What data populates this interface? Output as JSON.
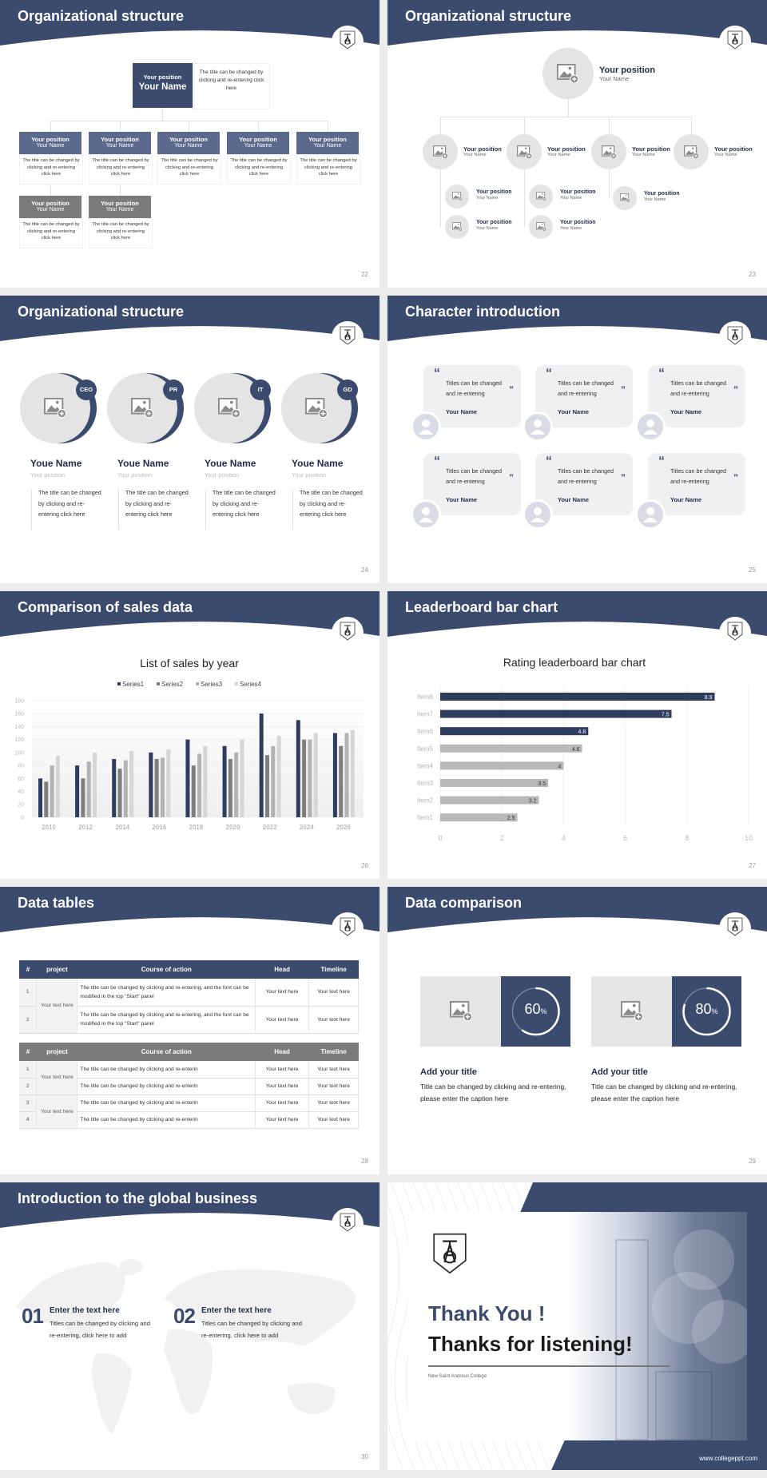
{
  "theme": {
    "navy": "#3b4b6e",
    "navy_light": "#5b6a8c",
    "gray_header": "#7b7b7b",
    "placeholder_gray": "#e4e4e4"
  },
  "s22": {
    "title": "Organizational structure",
    "page": "22",
    "top": {
      "position": "Your position",
      "name": "Your Name",
      "desc": "The title can be changed by clicking and re-entering click here"
    },
    "members": [
      {
        "position": "Your position",
        "name": "Your Name",
        "desc": "The title can be changed by clicking and re-entering click here"
      },
      {
        "position": "Your position",
        "name": "Your Name",
        "desc": "The title can be changed by clicking and re-entering click here"
      },
      {
        "position": "Your position",
        "name": "Your Name",
        "desc": "The title can be changed by clicking and re-entering click here"
      },
      {
        "position": "Your position",
        "name": "Your Name",
        "desc": "The title can be changed by clicking and re-entering click here"
      },
      {
        "position": "Your position",
        "name": "Your Name",
        "desc": "The title can be changed by clicking and re-entering click here"
      },
      {
        "position": "Your position",
        "name": "Your Name",
        "desc": "The title can be changed by clicking and re-entering click here"
      },
      {
        "position": "Your position",
        "name": "Your Name",
        "desc": "The title can be changed by clicking and re-entering click here"
      }
    ]
  },
  "s23": {
    "title": "Organizational structure",
    "page": "23",
    "top": {
      "position": "Your position",
      "name": "Your Name"
    },
    "mid": [
      {
        "position": "Your position",
        "name": "Your Name"
      },
      {
        "position": "Your position",
        "name": "Your Name"
      },
      {
        "position": "Your position",
        "name": "Your Name"
      },
      {
        "position": "Your position",
        "name": "Your Name"
      }
    ],
    "small": [
      {
        "position": "Your position",
        "name": "Your Name"
      },
      {
        "position": "Your position",
        "name": "Your Name"
      },
      {
        "position": "Your position",
        "name": "Your Name"
      },
      {
        "position": "Your position",
        "name": "Your Name"
      },
      {
        "position": "Your position",
        "name": "Your Name"
      }
    ]
  },
  "s24": {
    "title": "Organizational structure",
    "page": "24",
    "people": [
      {
        "badge": "CEO",
        "name": "Youe Name",
        "position": "Your position",
        "desc": "The title can be changed by clicking and re-entering click here"
      },
      {
        "badge": "PR",
        "name": "Youe Name",
        "position": "Your position",
        "desc": "The title can be changed by clicking and re-entering click here"
      },
      {
        "badge": "IT",
        "name": "Youe Name",
        "position": "Your position",
        "desc": "The title can be changed by clicking and re-entering click here"
      },
      {
        "badge": "GD",
        "name": "Youe Name",
        "position": "Your position",
        "desc": "The title can be changed by clicking and re-entering click here"
      }
    ]
  },
  "s25": {
    "title": "Character introduction",
    "page": "25",
    "open_quote": "“",
    "close_quote": "”",
    "cards": [
      {
        "text": "Titles can be changed and re-entering",
        "name": "Your Name"
      },
      {
        "text": "Titles can be changed and re-entering",
        "name": "Your Name"
      },
      {
        "text": "Titles can be changed and re-entering",
        "name": "Your Name"
      },
      {
        "text": "Titles can be changed and re-entering",
        "name": "Your Name"
      },
      {
        "text": "Titles can be changed and re-entering",
        "name": "Your Name"
      },
      {
        "text": "Titles can be changed and re-entering",
        "name": "Your Name"
      }
    ]
  },
  "s26": {
    "title": "Comparison of sales data",
    "page": "26"
  },
  "s27": {
    "title": "Leaderboard bar chart",
    "page": "27"
  },
  "s28": {
    "title": "Data tables",
    "page": "28",
    "headers": [
      "#",
      "project",
      "Course of action",
      "Head",
      "Timeline"
    ],
    "table1": {
      "project": "Your text here",
      "rows": [
        {
          "num": "1",
          "action": "The title can be changed by clicking and re-entering, and the font can be modified in the top \"Start\" panel",
          "head": "Your text here",
          "timeline": "Your text here"
        },
        {
          "num": "2",
          "action": "The title can be changed by clicking and re-entering, and the font can be modified in the top \"Start\" panel",
          "head": "Your text here",
          "timeline": "Your text here"
        }
      ]
    },
    "table2": {
      "projects": [
        "Your text here",
        "Your text here"
      ],
      "rows": [
        {
          "num": "1",
          "action": "The title can be changed by clicking and re-enterin",
          "head": "Your text here",
          "timeline": "Your text here"
        },
        {
          "num": "2",
          "action": "The title can be changed by clicking and re-enterin",
          "head": "Your text here",
          "timeline": "Your text here"
        },
        {
          "num": "3",
          "action": "The title can be changed by clicking and re-enterin",
          "head": "Your text here",
          "timeline": "Your text here"
        },
        {
          "num": "4",
          "action": "The title can be changed by clicking and re-enterin",
          "head": "Your text here",
          "timeline": "Your text here"
        }
      ]
    }
  },
  "s29": {
    "title": "Data comparison",
    "page": "29",
    "items": [
      {
        "percent": 60,
        "value": "60",
        "unit": "%",
        "heading": "Add your title",
        "text": "Title can be changed by clicking and re-entering, please enter the caption here"
      },
      {
        "percent": 80,
        "value": "80",
        "unit": "%",
        "heading": "Add your title",
        "text": "Title can be changed by clicking and re-entering, please enter the caption here"
      }
    ]
  },
  "s30": {
    "title": "Introduction to the global business",
    "page": "30",
    "items": [
      {
        "num": "01",
        "heading": "Enter the text here",
        "text": "Titles can be changed by clicking and re-entering, click here to add"
      },
      {
        "num": "02",
        "heading": "Enter the text here",
        "text": "Titles can be changed by clicking and re-entering, click here to add"
      }
    ]
  },
  "s31": {
    "line1": "Thank You !",
    "line2": "Thanks for listening!",
    "college": "New Saint Andreus College",
    "url": "www.collegeppt.com"
  },
  "chart_data": [
    {
      "type": "bar",
      "title": "List of sales by year",
      "categories": [
        "2010",
        "2012",
        "2014",
        "2016",
        "2018",
        "2020",
        "2022",
        "2024",
        "2026"
      ],
      "series": [
        {
          "name": "Series1",
          "color": "#2e3d5e",
          "values": [
            60,
            80,
            90,
            100,
            120,
            110,
            160,
            150,
            130
          ]
        },
        {
          "name": "Series2",
          "color": "#7f7f7f",
          "values": [
            55,
            60,
            75,
            90,
            80,
            90,
            96,
            120,
            110
          ]
        },
        {
          "name": "Series3",
          "color": "#b3b3b3",
          "values": [
            80,
            86,
            88,
            92,
            98,
            100,
            110,
            120,
            130
          ]
        },
        {
          "name": "Series4",
          "color": "#d6d6d6",
          "values": [
            95,
            100,
            102,
            105,
            110,
            120,
            126,
            130,
            135
          ]
        }
      ],
      "ylim": [
        0,
        180
      ],
      "yticks": [
        "0",
        "20",
        "40",
        "60",
        "80",
        "100",
        "120",
        "140",
        "160",
        "180"
      ],
      "legend": "top",
      "grid": true
    },
    {
      "type": "bar",
      "orientation": "horizontal",
      "title": "Rating leaderboard bar chart",
      "categories": [
        "Item8",
        "Item7",
        "Item6",
        "Item5",
        "Item4",
        "Item3",
        "Item2",
        "Item1"
      ],
      "values": [
        8.9,
        7.5,
        4.8,
        4.6,
        4,
        3.5,
        3.2,
        2.5
      ],
      "labels": [
        "8.9",
        "7.5",
        "4.8",
        "4.6",
        "4",
        "3.5",
        "3.2",
        "2.5"
      ],
      "colors": [
        "#2e3d5e",
        "#2e3d5e",
        "#2e3d5e",
        "#b8b8b8",
        "#b8b8b8",
        "#b8b8b8",
        "#b8b8b8",
        "#b8b8b8"
      ],
      "xlim": [
        0,
        10
      ],
      "xticks": [
        "0",
        "2",
        "4",
        "6",
        "8",
        "10"
      ],
      "grid": true
    }
  ]
}
